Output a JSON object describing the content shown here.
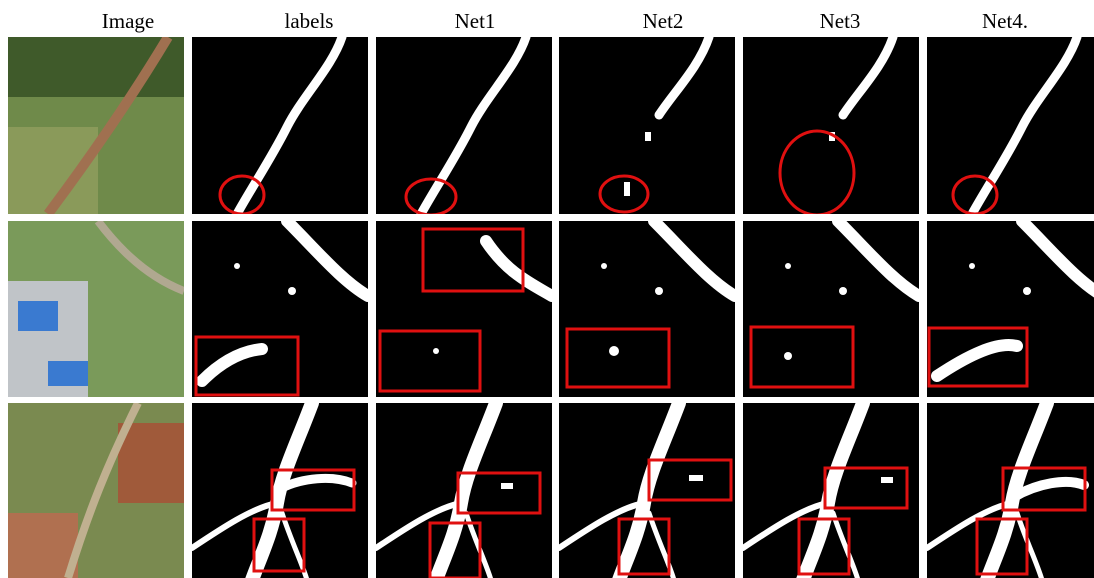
{
  "header": {
    "columns": [
      "Image",
      "labels",
      "Net1",
      "Net2",
      "Net3",
      "Net4."
    ]
  }
}
